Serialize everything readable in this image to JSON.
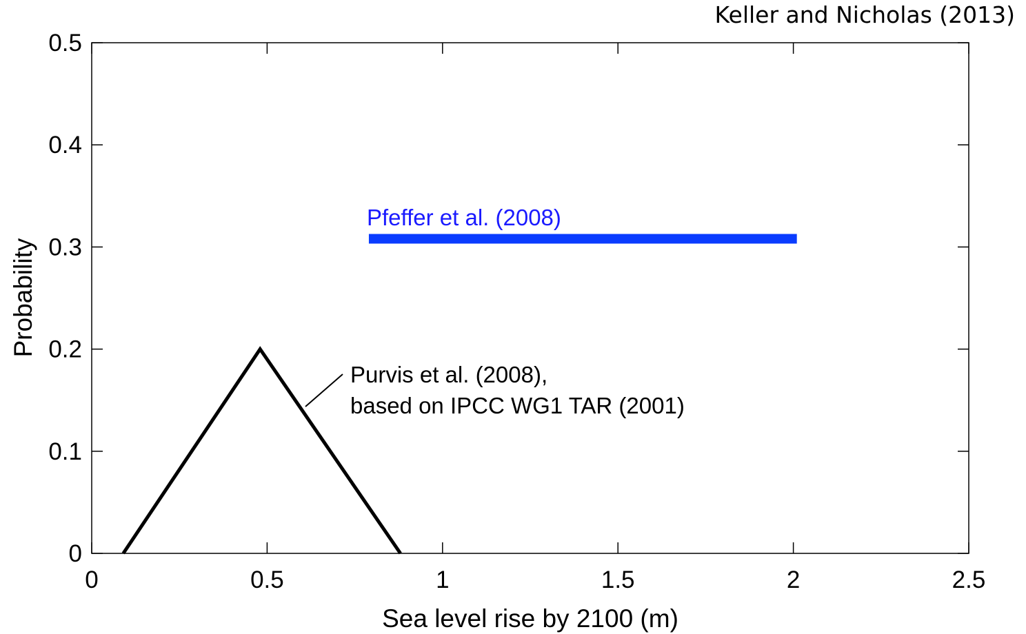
{
  "credit": "Keller and Nicholas (2013)",
  "chart_data": {
    "type": "line",
    "xlabel": "Sea level rise by 2100 (m)",
    "ylabel": "Probability",
    "xlim": [
      0,
      2.5
    ],
    "ylim": [
      0,
      0.5
    ],
    "xticks": [
      "0",
      "0.5",
      "1",
      "1.5",
      "2",
      "2.5"
    ],
    "yticks": [
      "0",
      "0.1",
      "0.2",
      "0.3",
      "0.4",
      "0.5"
    ],
    "grid": false,
    "series": [
      {
        "name": "Purvis et al. (2008), based on IPCC WG1 TAR (2001)",
        "color": "#000000",
        "x": [
          0.09,
          0.48,
          0.88
        ],
        "y": [
          0,
          0.2,
          0
        ]
      },
      {
        "name": "Pfeffer et al. (2008)",
        "color": "#0a3cff",
        "x": [
          0.79,
          2.01
        ],
        "y": [
          0.308,
          0.308
        ]
      }
    ],
    "annotations": [
      {
        "line1": "Purvis et al. (2008),",
        "line2": "based on IPCC WG1 TAR (2001)",
        "color": "#000000"
      },
      {
        "text": "Pfeffer et al. (2008)",
        "color": "#1a1aff"
      }
    ]
  }
}
